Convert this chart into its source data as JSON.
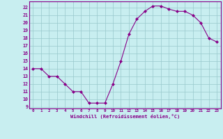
{
  "x": [
    0,
    1,
    2,
    3,
    4,
    5,
    6,
    7,
    8,
    9,
    10,
    11,
    12,
    13,
    14,
    15,
    16,
    17,
    18,
    19,
    20,
    21,
    22,
    23
  ],
  "y": [
    14,
    14,
    13,
    13,
    12,
    11,
    11,
    9.5,
    9.5,
    9.5,
    12,
    15,
    18.5,
    20.5,
    21.5,
    22.2,
    22.2,
    21.8,
    21.5,
    21.5,
    21,
    20,
    18,
    17.5
  ],
  "line_color": "#880088",
  "marker_color": "#880088",
  "bg_color": "#c8eef0",
  "grid_color": "#98c8cc",
  "spine_color": "#880088",
  "text_color": "#880088",
  "xlabel": "Windchill (Refroidissement éolien,°C)",
  "ylim": [
    8.8,
    22.8
  ],
  "xlim": [
    -0.5,
    23.5
  ],
  "yticks": [
    9,
    10,
    11,
    12,
    13,
    14,
    15,
    16,
    17,
    18,
    19,
    20,
    21,
    22
  ],
  "xticks": [
    0,
    1,
    2,
    3,
    4,
    5,
    6,
    7,
    8,
    9,
    10,
    11,
    12,
    13,
    14,
    15,
    16,
    17,
    18,
    19,
    20,
    21,
    22,
    23
  ]
}
